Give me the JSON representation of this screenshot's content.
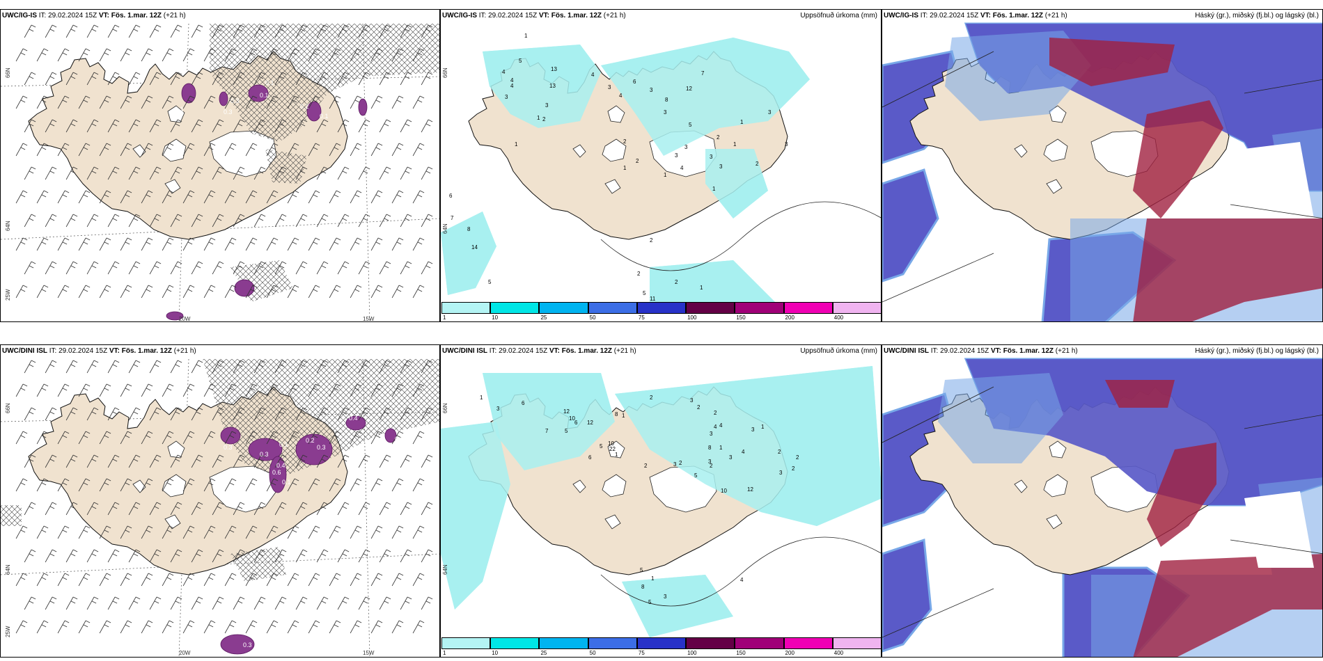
{
  "panels": [
    {
      "id": "wind-top",
      "model": "UWC/IG-IS",
      "it_label": "IT:",
      "it_value": "29.02.2024 15Z",
      "vt_label": "VT:",
      "vt_value": "Fös. 1.mar. 12Z",
      "lead": "(+21 h)",
      "right_title": "",
      "values": [
        "0.1",
        "0.3",
        "0.1",
        "0.1",
        "0.3",
        "0.2",
        "0.1"
      ],
      "axis": [
        "66N",
        "64N",
        "25W",
        "20W",
        "15W"
      ]
    },
    {
      "id": "precip-top",
      "model": "UWC/IG-IS",
      "it_label": "IT:",
      "it_value": "29.02.2024 15Z",
      "vt_label": "VT:",
      "vt_value": "Fös. 1.mar. 12Z",
      "lead": "(+21 h)",
      "right_title": "Uppsöfnuð úrkoma (mm)",
      "values": [
        "1",
        "5",
        "4",
        "4",
        "13",
        "4",
        "3",
        "13",
        "3",
        "2",
        "4",
        "3",
        "4",
        "6",
        "3",
        "8",
        "12",
        "7",
        "3",
        "5",
        "3",
        "3",
        "4",
        "3",
        "2",
        "3",
        "3",
        "3",
        "2",
        "1",
        "1",
        "6",
        "7",
        "8",
        "14",
        "5",
        "3",
        "1",
        "1",
        "2",
        "2",
        "1",
        "1",
        "2",
        "11",
        "2",
        "1",
        "2",
        "5",
        "1"
      ],
      "axis": [
        "66N",
        "64N"
      ]
    },
    {
      "id": "cloud-top",
      "model": "UWC/IG-IS",
      "it_label": "IT:",
      "it_value": "29.02.2024 15Z",
      "vt_label": "VT:",
      "vt_value": "Fös. 1.mar. 12Z",
      "lead": "(+21 h)",
      "right_title": "Háský (gr.), miðský (fj.bl.) og lágský (bl.)",
      "values": [],
      "axis": []
    },
    {
      "id": "wind-bottom",
      "model": "UWC/DINI ISL",
      "it_label": "IT:",
      "it_value": "29.02.2024 15Z",
      "vt_label": "VT:",
      "vt_value": "Fös. 1.mar. 12Z",
      "lead": "(+21 h)",
      "right_title": "",
      "values": [
        "0.3",
        "0.3",
        "0.1",
        "0.2",
        "0.3",
        "0.6",
        "0.4",
        "0.1",
        "0.3",
        "0.4",
        "0.1"
      ],
      "axis": [
        "66N",
        "64N",
        "25W",
        "20W",
        "15W"
      ]
    },
    {
      "id": "precip-bottom",
      "model": "UWC/DINI ISL",
      "it_label": "IT:",
      "it_value": "29.02.2024 15Z",
      "vt_label": "VT:",
      "vt_value": "Fös. 1.mar. 12Z",
      "lead": "(+21 h)",
      "right_title": "Uppsöfnuð úrkoma (mm)",
      "values": [
        "1",
        "3",
        "6",
        "12",
        "10",
        "7",
        "5",
        "12",
        "8",
        "1",
        "6",
        "1",
        "22",
        "10",
        "5",
        "6",
        "2",
        "3",
        "2",
        "2",
        "8",
        "1",
        "3",
        "4",
        "2",
        "3",
        "4",
        "3",
        "1",
        "2",
        "3",
        "2",
        "2",
        "5",
        "3",
        "3",
        "2",
        "4",
        "10",
        "12",
        "2",
        "4",
        "5",
        "1",
        "8",
        "5",
        "3"
      ],
      "axis": [
        "66N",
        "64N"
      ]
    },
    {
      "id": "cloud-bottom",
      "model": "UWC/DINI ISL",
      "it_label": "IT:",
      "it_value": "29.02.2024 15Z",
      "vt_label": "VT:",
      "vt_value": "Fös. 1.mar. 12Z",
      "lead": "(+21 h)",
      "right_title": "Háský (gr.), miðský (fj.bl.) og lágský (bl.)",
      "values": [],
      "axis": []
    }
  ],
  "colorbar": {
    "ticks": [
      "1",
      "10",
      "25",
      "50",
      "75",
      "100",
      "150",
      "200",
      "400"
    ],
    "colors": [
      "#b4f4f4",
      "#00e6e6",
      "#00b4f0",
      "#3c6ee6",
      "#2832c8",
      "#640046",
      "#a00078",
      "#f000b4",
      "#f0b4f0"
    ]
  },
  "colors": {
    "land": "#f0e2cf",
    "precip_light": "#a8f0f0",
    "cloud_low": "#5a5ac8",
    "cloud_mid": "#78a8e8",
    "cloud_high": "#a02040"
  }
}
